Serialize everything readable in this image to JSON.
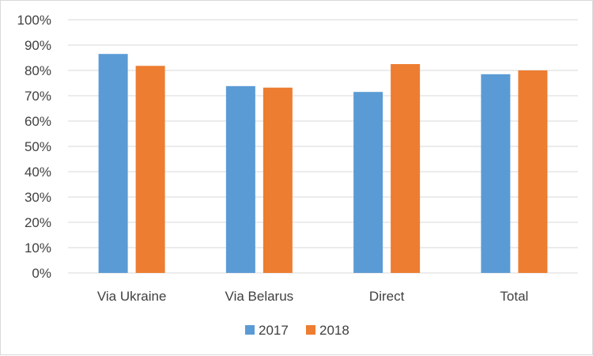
{
  "chart_data": {
    "type": "bar",
    "categories": [
      "Via Ukraine",
      "Via Belarus",
      "Direct",
      "Total"
    ],
    "series": [
      {
        "name": "2017",
        "color": "#5b9bd5",
        "values": [
          0.865,
          0.738,
          0.715,
          0.785
        ]
      },
      {
        "name": "2018",
        "color": "#ed7d31",
        "values": [
          0.818,
          0.732,
          0.825,
          0.8
        ]
      }
    ],
    "y_ticks": [
      "0%",
      "10%",
      "20%",
      "30%",
      "40%",
      "50%",
      "60%",
      "70%",
      "80%",
      "90%",
      "100%"
    ],
    "ylim": [
      0,
      1
    ],
    "grid": true,
    "legend_position": "bottom",
    "gridline_color": "#d9d9d9"
  }
}
